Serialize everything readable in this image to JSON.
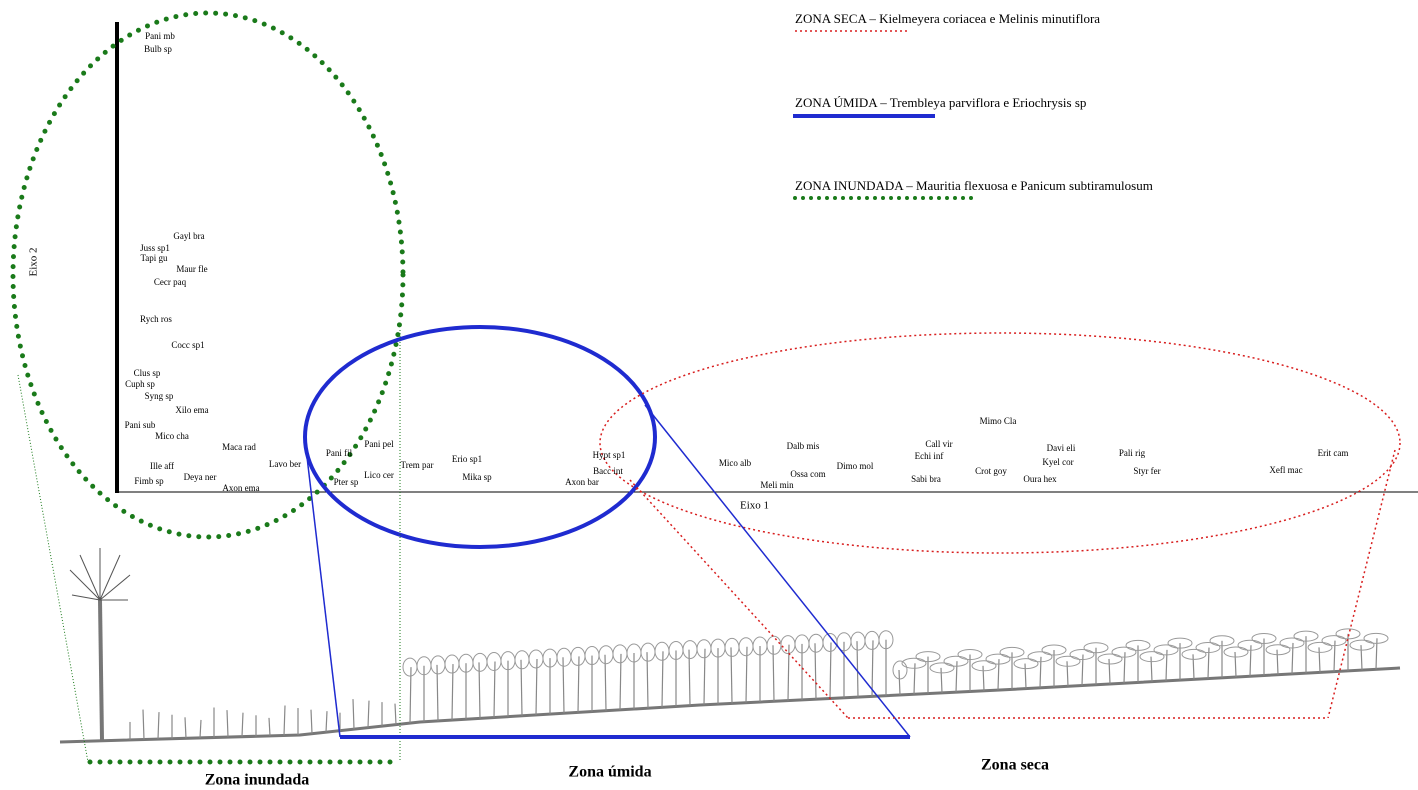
{
  "axes": {
    "x_label": "Eixo 1",
    "y_label": "Eixo 2"
  },
  "legend": [
    {
      "zone": "ZONA SECA",
      "text": " – Kielmeyera coriacea e Melinis minutiflora"
    },
    {
      "zone": "ZONA ÚMIDA",
      "text": " – Trembleya parviflora e Eriochrysis sp"
    },
    {
      "zone": "ZONA INUNDADA",
      "text": " – Mauritia flexuosa e Panicum subtiramulosum"
    }
  ],
  "species": [
    "Pani mb",
    "Bulb sp",
    "Gayl bra",
    "Juss sp1",
    "Tapi gu",
    "Maur fle",
    "Cecr paq",
    "Rych ros",
    "Cocc sp1",
    "Clus sp",
    "Cuph sp",
    "Syng sp",
    "Xilo ema",
    "Pani sub",
    "Mico cha",
    "Maca rad",
    "Pani pel",
    "Pani fil",
    "Ille aff",
    "Lavo ber",
    "Trem par",
    "Erio sp1",
    "Hypt sp1",
    "Bacc int",
    "Mico alb",
    "Dalb mis",
    "Call vir",
    "Echi inf",
    "Mimo Cla",
    "Davi eli",
    "Kyel cor",
    "Pali rig",
    "Erit cam",
    "Fimb sp",
    "Deya ner",
    "Axon ema",
    "Lico cer",
    "Pter sp",
    "Mika sp",
    "Axon bar",
    "Ossa com",
    "Dimo mol",
    "Meli min",
    "Sabi bra",
    "Crot goy",
    "Oura hex",
    "Styr fer",
    "Xefl mac"
  ],
  "zones": [
    "Zona inundada",
    "Zona úmida",
    "Zona seca"
  ]
}
